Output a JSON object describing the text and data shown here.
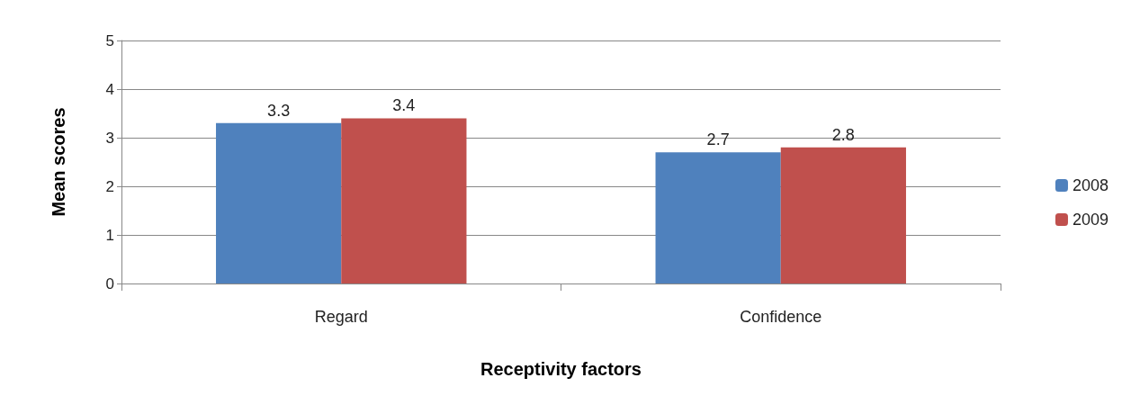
{
  "chart_data": {
    "type": "bar",
    "xlabel": "Receptivity factors",
    "ylabel": "Mean scores",
    "categories": [
      "Regard",
      "Confidence"
    ],
    "series": [
      {
        "name": "2008",
        "color": "#4f81bd",
        "values": [
          3.3,
          2.7
        ]
      },
      {
        "name": "2009",
        "color": "#c0504d",
        "values": [
          3.4,
          2.8
        ]
      }
    ],
    "ylim": [
      0,
      5
    ],
    "yticks": [
      0,
      1,
      2,
      3,
      4,
      5
    ],
    "grid": "y",
    "legend": "right",
    "data_labels": true
  }
}
